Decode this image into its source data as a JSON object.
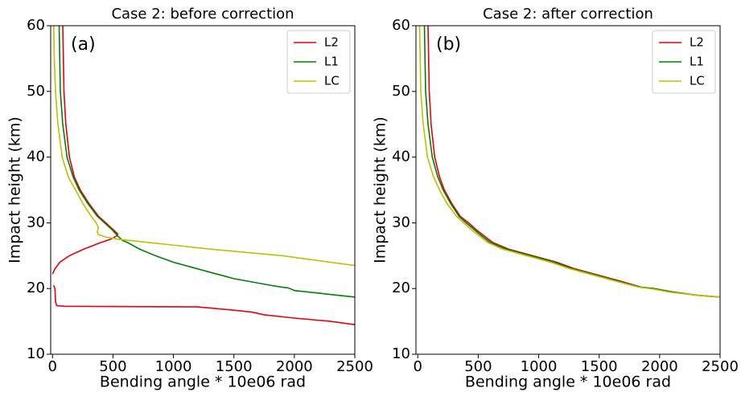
{
  "chart_data": [
    {
      "type": "line",
      "title": "Case 2: before correction",
      "annotation": "(a)",
      "xlabel": "Bending angle * 10e06 rad",
      "ylabel": "Impact height (km)",
      "xlim": [
        -15,
        2500
      ],
      "ylim": [
        10,
        60
      ],
      "xticks": [
        0,
        500,
        1000,
        1500,
        2000,
        2500
      ],
      "yticks": [
        10,
        20,
        30,
        40,
        50,
        60
      ],
      "legend": "upper right",
      "series": [
        {
          "name": "L2",
          "color": "#e8000b",
          "x": [
            85,
            95,
            110,
            140,
            180,
            230,
            300,
            380,
            440,
            500,
            540,
            530,
            480,
            400,
            260,
            140,
            60,
            20,
            0,
            null,
            10,
            20,
            25,
            35,
            100,
            1200,
            1500,
            1650,
            1750,
            2000,
            2300,
            2500
          ],
          "values": [
            60,
            50,
            45,
            40,
            37,
            35,
            33,
            31,
            30,
            29,
            28.3,
            28,
            27.5,
            27,
            26,
            25,
            24,
            23,
            22.2,
            null,
            20.5,
            20,
            18,
            17.4,
            17.3,
            17.2,
            16.7,
            16.4,
            16.0,
            15.5,
            15.0,
            14.5
          ]
        },
        {
          "name": "L1",
          "color": "#008000",
          "x": [
            55,
            65,
            85,
            120,
            170,
            220,
            290,
            370,
            430,
            490,
            540,
            580,
            620,
            720,
            850,
            1000,
            1200,
            1300,
            1400,
            1500,
            1650,
            1800,
            1900,
            1950,
            2000,
            2200,
            2350,
            2500
          ],
          "values": [
            60,
            50,
            45,
            40,
            37,
            35,
            33,
            31,
            30,
            29,
            28,
            27.3,
            27,
            26,
            25,
            24,
            23,
            22.5,
            22,
            21.5,
            21,
            20.5,
            20.2,
            20.1,
            19.7,
            19.3,
            19,
            18.7
          ]
        },
        {
          "name": "LC",
          "color": "#bfbf00",
          "x": [
            10,
            15,
            25,
            45,
            80,
            130,
            190,
            250,
            320,
            360,
            380,
            370,
            380,
            450,
            550,
            700,
            800,
            1050,
            1300,
            1600,
            1900,
            2100,
            2300,
            2500
          ],
          "values": [
            60,
            55,
            50,
            45,
            40,
            37,
            35,
            33,
            31,
            30,
            29.3,
            28.6,
            28.2,
            27.8,
            27.5,
            27.2,
            27,
            26.5,
            26,
            25.5,
            25,
            24.5,
            24,
            23.5
          ]
        }
      ]
    },
    {
      "type": "line",
      "title": "Case 2: after correction",
      "annotation": "(b)",
      "xlabel": "Bending angle * 10e06 rad",
      "ylabel": "Impact height (km)",
      "xlim": [
        -15,
        2500
      ],
      "ylim": [
        10,
        60
      ],
      "xticks": [
        0,
        500,
        1000,
        1500,
        2000,
        2500
      ],
      "yticks": [
        10,
        20,
        30,
        40,
        50,
        60
      ],
      "legend": "upper right",
      "series": [
        {
          "name": "L2",
          "color": "#e8000b",
          "x": [
            85,
            95,
            110,
            140,
            180,
            220,
            280,
            350,
            420,
            480,
            550,
            620,
            750,
            950,
            1150,
            1300,
            1500,
            1700,
            1850,
            1950,
            2100,
            2300,
            2500
          ],
          "values": [
            60,
            50,
            45,
            40,
            37,
            35,
            33,
            31,
            30,
            29,
            28,
            27,
            26,
            25,
            24,
            23,
            22,
            21,
            20.2,
            20,
            19.5,
            19,
            18.7
          ]
        },
        {
          "name": "L1",
          "color": "#008000",
          "x": [
            55,
            65,
            85,
            120,
            165,
            210,
            270,
            340,
            400,
            465,
            530,
            600,
            730,
            930,
            1130,
            1280,
            1480,
            1680,
            1840,
            1950,
            2100,
            2300,
            2500
          ],
          "values": [
            60,
            50,
            45,
            40,
            37,
            35,
            33,
            31,
            30,
            29,
            28,
            27,
            26,
            25,
            24,
            23,
            22,
            21,
            20.2,
            20,
            19.5,
            19,
            18.7
          ]
        },
        {
          "name": "LC",
          "color": "#bfbf00",
          "x": [
            15,
            25,
            45,
            80,
            130,
            180,
            240,
            320,
            380,
            440,
            510,
            580,
            700,
            900,
            1100,
            1260,
            1460,
            1660,
            1830,
            1950,
            2100,
            2300,
            2500
          ],
          "values": [
            60,
            50,
            45,
            40,
            37,
            35,
            33,
            31,
            30,
            29,
            28,
            27,
            26,
            25,
            24,
            23,
            22,
            21,
            20.2,
            19.9,
            19.4,
            19,
            18.7
          ]
        }
      ]
    }
  ]
}
